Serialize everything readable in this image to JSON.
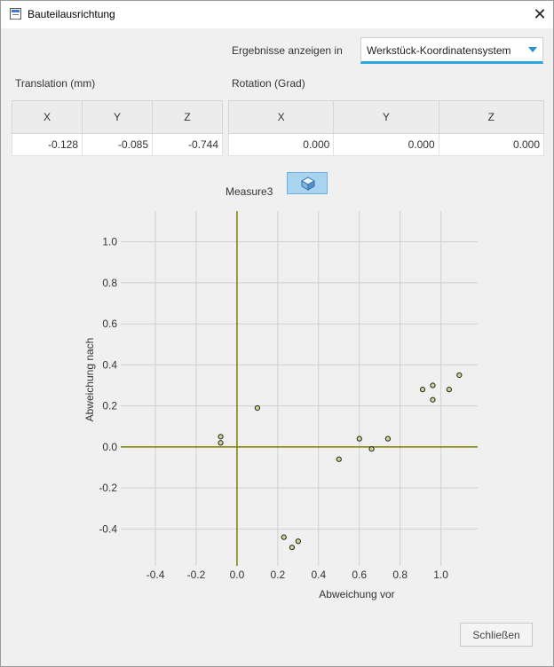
{
  "window": {
    "title": "Bauteilausrichtung",
    "close_glyph": "✕"
  },
  "results": {
    "label": "Ergebnisse anzeigen in",
    "selected": "Werkstück-Koordinatensystem"
  },
  "translation": {
    "title": "Translation (mm)",
    "headers": [
      "X",
      "Y",
      "Z"
    ],
    "values": [
      "-0.128",
      "-0.085",
      "-0.744"
    ]
  },
  "rotation": {
    "title": "Rotation (Grad)",
    "headers": [
      "X",
      "Y",
      "Z"
    ],
    "values": [
      "0.000",
      "0.000",
      "0.000"
    ]
  },
  "measure": {
    "label": "Measure3",
    "icon": "cube-view-icon"
  },
  "chart_data": {
    "type": "scatter",
    "xlabel": "Abweichung vor",
    "ylabel": "Abweichung nach",
    "xlim": [
      -0.57,
      1.18
    ],
    "ylim": [
      -0.58,
      1.15
    ],
    "xticks": [
      -0.4,
      -0.2,
      0.0,
      0.2,
      0.4,
      0.6,
      0.8,
      1.0
    ],
    "yticks": [
      -0.4,
      -0.2,
      0.0,
      0.2,
      0.4,
      0.6,
      0.8,
      1.0
    ],
    "xtick_labels": [
      "-0.4",
      "-0.2",
      "0.0",
      "0.2",
      "0.4",
      "0.6",
      "0.8",
      "1.0"
    ],
    "ytick_labels": [
      "-0.4",
      "-0.2",
      "0.0",
      "0.2",
      "0.4",
      "0.6",
      "0.8",
      "1.0"
    ],
    "grid": true,
    "points": [
      {
        "x": -0.08,
        "y": 0.05
      },
      {
        "x": -0.08,
        "y": 0.02
      },
      {
        "x": 0.1,
        "y": 0.19
      },
      {
        "x": 0.23,
        "y": -0.44
      },
      {
        "x": 0.27,
        "y": -0.49
      },
      {
        "x": 0.3,
        "y": -0.46
      },
      {
        "x": 0.5,
        "y": -0.06
      },
      {
        "x": 0.6,
        "y": 0.04
      },
      {
        "x": 0.66,
        "y": -0.01
      },
      {
        "x": 0.74,
        "y": 0.04
      },
      {
        "x": 0.91,
        "y": 0.28
      },
      {
        "x": 0.96,
        "y": 0.3
      },
      {
        "x": 0.96,
        "y": 0.23
      },
      {
        "x": 1.04,
        "y": 0.28
      },
      {
        "x": 1.09,
        "y": 0.35
      }
    ],
    "colors": {
      "axis": "#7f7f00",
      "grid": "#d0d0d0",
      "point_fill": "#c8d890",
      "point_stroke": "#222222"
    }
  },
  "footer": {
    "close_label": "Schließen"
  }
}
